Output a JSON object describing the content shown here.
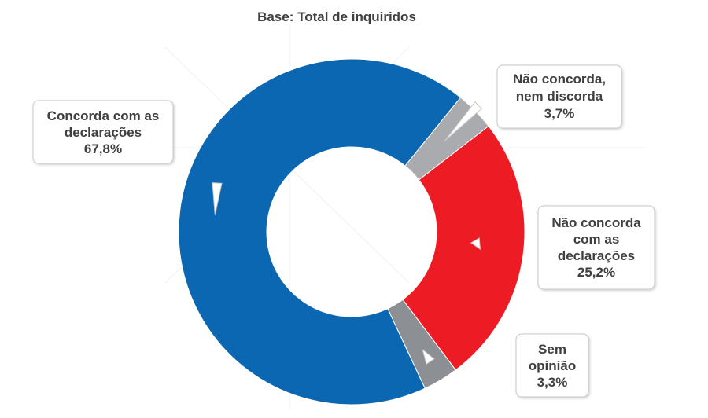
{
  "chart_data": {
    "type": "pie",
    "variant": "donut",
    "title": "Base: Total de inquiridos",
    "slices": [
      {
        "label_lines": [
          "Não concorda,",
          "nem discorda"
        ],
        "value": 3.7,
        "value_label": "3,7%",
        "color": "#a9abae"
      },
      {
        "label_lines": [
          "Não concorda",
          "com as",
          "declarações"
        ],
        "value": 25.2,
        "value_label": "25,2%",
        "color": "#ed1c24"
      },
      {
        "label_lines": [
          "Sem",
          "opinião"
        ],
        "value": 3.3,
        "value_label": "3,3%",
        "color": "#8c8f93"
      },
      {
        "label_lines": [
          "Concorda com as",
          "declarações"
        ],
        "value": 67.8,
        "value_label": "67,8%",
        "color": "#0b67b2"
      }
    ],
    "start_angle_deg": 39,
    "direction": "clockwise"
  }
}
